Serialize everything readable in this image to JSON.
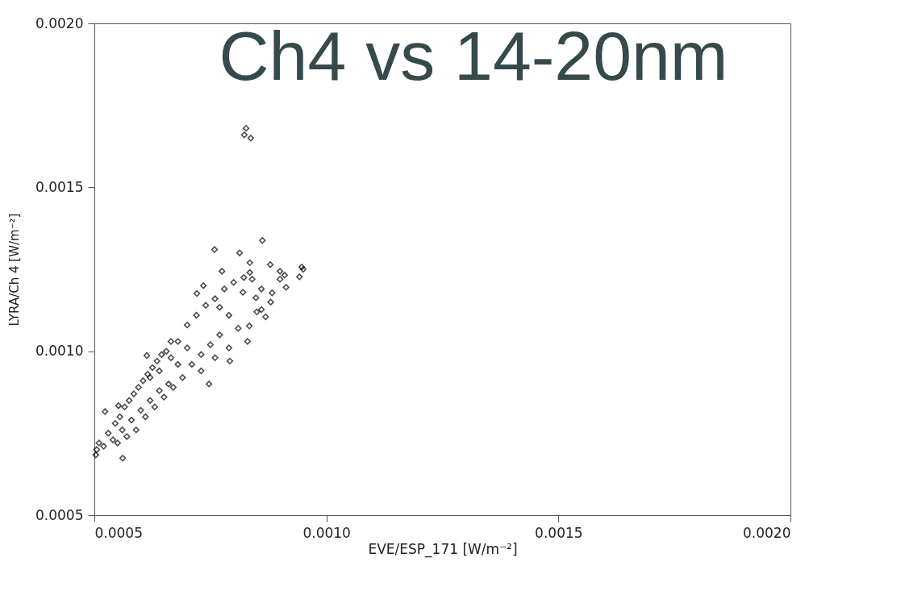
{
  "chart_data": {
    "type": "scatter",
    "title": "Ch4 vs 14-20nm",
    "xlabel": "EVE/ESP_171 [W/m⁻²]",
    "ylabel": "LYRA/Ch 4 [W/m⁻²]",
    "xlim": [
      0.0005,
      0.002
    ],
    "ylim": [
      0.0005,
      0.002
    ],
    "xticks": [
      {
        "value": 0.0005,
        "label": "0.0005"
      },
      {
        "value": 0.001,
        "label": "0.0010"
      },
      {
        "value": 0.0015,
        "label": "0.0015"
      },
      {
        "value": 0.002,
        "label": "0.0020"
      }
    ],
    "yticks": [
      {
        "value": 0.0005,
        "label": "0.0005"
      },
      {
        "value": 0.001,
        "label": "0.0010"
      },
      {
        "value": 0.0015,
        "label": "0.0015"
      },
      {
        "value": 0.002,
        "label": "0.0020"
      }
    ],
    "marker": "diamond",
    "grid": false,
    "legend": false,
    "series": [
      {
        "color": "#000000",
        "x": [
          0.000827,
          0.000823,
          0.000837,
          0.000947,
          0.00095,
          0.000942,
          0.000862,
          0.000759,
          0.000813,
          0.000835,
          0.000775,
          0.000835,
          0.000822,
          0.000879,
          0.0009,
          0.00091,
          0.000913,
          0.000883,
          0.00086,
          0.000848,
          0.000735,
          0.000721,
          0.000665,
          0.000613,
          0.000523,
          0.000552,
          0.000747,
          0.000792,
          0.000834,
          0.000869,
          0.00077,
          0.000561,
          0.000503,
          0.000505,
          0.00051,
          0.00052,
          0.00053,
          0.00054,
          0.000545,
          0.00055,
          0.000555,
          0.00056,
          0.000565,
          0.00057,
          0.000575,
          0.00058,
          0.000585,
          0.00059,
          0.000595,
          0.0006,
          0.000605,
          0.00061,
          0.000615,
          0.00062,
          0.000625,
          0.00063,
          0.000635,
          0.00064,
          0.000645,
          0.00065,
          0.000655,
          0.00066,
          0.000665,
          0.00067,
          0.00068,
          0.00069,
          0.0007,
          0.00071,
          0.00072,
          0.00073,
          0.00074,
          0.00075,
          0.00076,
          0.00077,
          0.00078,
          0.00079,
          0.0008,
          0.00081,
          0.00082,
          0.00083,
          0.00084,
          0.00085,
          0.00086,
          0.00088,
          0.0009,
          0.00062,
          0.00064,
          0.00068,
          0.0007,
          0.00073,
          0.00076,
          0.00079
        ],
        "values": [
          0.00168,
          0.00166,
          0.00165,
          0.001257,
          0.00125,
          0.001227,
          0.001338,
          0.00131,
          0.0013,
          0.00127,
          0.001244,
          0.00124,
          0.001225,
          0.001264,
          0.001244,
          0.001232,
          0.001195,
          0.001178,
          0.001127,
          0.001163,
          0.0012,
          0.001176,
          0.00103,
          0.000987,
          0.000816,
          0.000834,
          0.0009,
          0.00097,
          0.001077,
          0.001105,
          0.001134,
          0.000674,
          0.000684,
          0.0007,
          0.00072,
          0.00071,
          0.00075,
          0.00073,
          0.00078,
          0.00072,
          0.0008,
          0.00076,
          0.00083,
          0.00074,
          0.00085,
          0.00079,
          0.00087,
          0.00076,
          0.00089,
          0.00082,
          0.00091,
          0.0008,
          0.00093,
          0.00085,
          0.00095,
          0.00083,
          0.00097,
          0.00088,
          0.00099,
          0.00086,
          0.001,
          0.0009,
          0.00098,
          0.00089,
          0.00103,
          0.00092,
          0.00108,
          0.00096,
          0.00111,
          0.00099,
          0.00114,
          0.00102,
          0.00116,
          0.00105,
          0.00119,
          0.00101,
          0.00121,
          0.00107,
          0.00118,
          0.00103,
          0.00122,
          0.00112,
          0.00119,
          0.00115,
          0.00122,
          0.00092,
          0.00094,
          0.00096,
          0.00101,
          0.00094,
          0.00098,
          0.00111
        ]
      }
    ]
  }
}
